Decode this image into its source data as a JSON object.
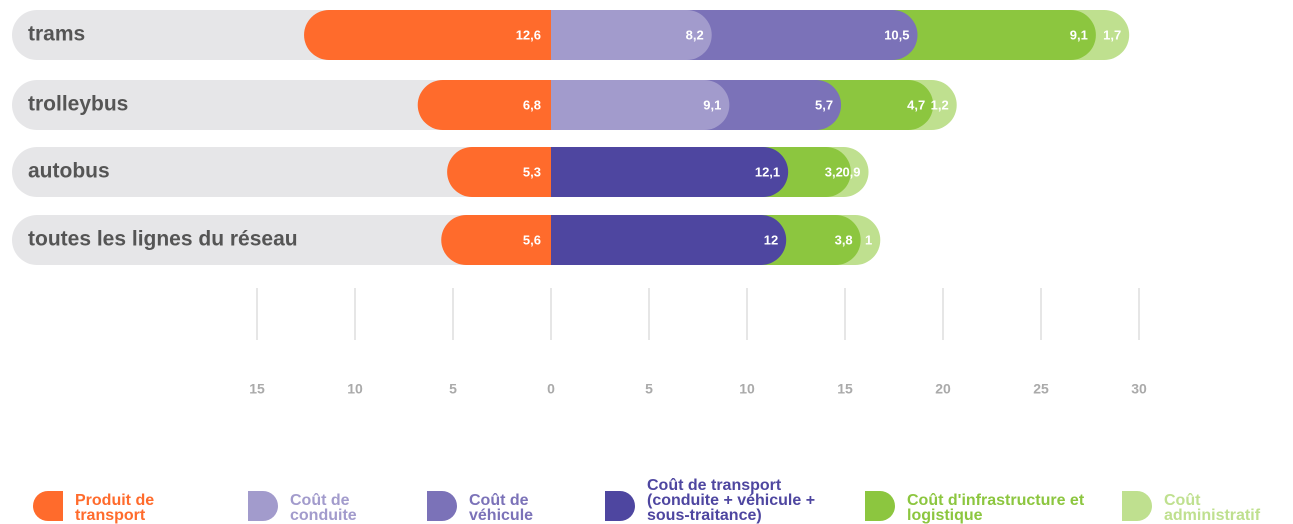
{
  "chart_data": {
    "type": "bar",
    "orientation": "horizontal",
    "stacked": true,
    "categories": [
      "trams",
      "trolleybus",
      "autobus",
      "toutes les lignes du réseau"
    ],
    "series": [
      {
        "name": "Produit de transport",
        "color": "#ff6b2c",
        "values": [
          -12.6,
          -6.8,
          -5.3,
          -5.6
        ],
        "value_labels": [
          "12,6",
          "6,8",
          "5,3",
          "5,6"
        ]
      },
      {
        "name": "Coût de conduite",
        "color": "#a29bcc",
        "values": [
          8.2,
          9.1,
          null,
          null
        ],
        "value_labels": [
          "8,2",
          "9,1",
          null,
          null
        ]
      },
      {
        "name": "Coût de véhicule",
        "color": "#7b72b8",
        "values": [
          10.5,
          5.7,
          null,
          null
        ],
        "value_labels": [
          "10,5",
          "5,7",
          null,
          null
        ]
      },
      {
        "name": "Coût de transport (conduite + véhicule + sous-traitance)",
        "color": "#4e46a0",
        "values": [
          null,
          null,
          12.1,
          12
        ],
        "value_labels": [
          null,
          null,
          "12,1",
          "12"
        ]
      },
      {
        "name": "Coût d'infrastructure et logistique",
        "color": "#8cc63f",
        "values": [
          9.1,
          4.7,
          3.2,
          3.8
        ],
        "value_labels": [
          "9,1",
          "4,7",
          "3,2",
          "3,8"
        ]
      },
      {
        "name": "Coût administratif",
        "color": "#bfe08f",
        "values": [
          1.7,
          1.2,
          0.9,
          1
        ],
        "value_labels": [
          "1,7",
          "1,2",
          "0,9",
          "1"
        ]
      }
    ],
    "xlim": [
      -28,
      37.5
    ],
    "xticks": [
      {
        "value": -15,
        "label": "15"
      },
      {
        "value": -10,
        "label": "10"
      },
      {
        "value": -5,
        "label": "5"
      },
      0,
      5,
      10,
      15,
      20,
      25,
      30
    ]
  }
}
